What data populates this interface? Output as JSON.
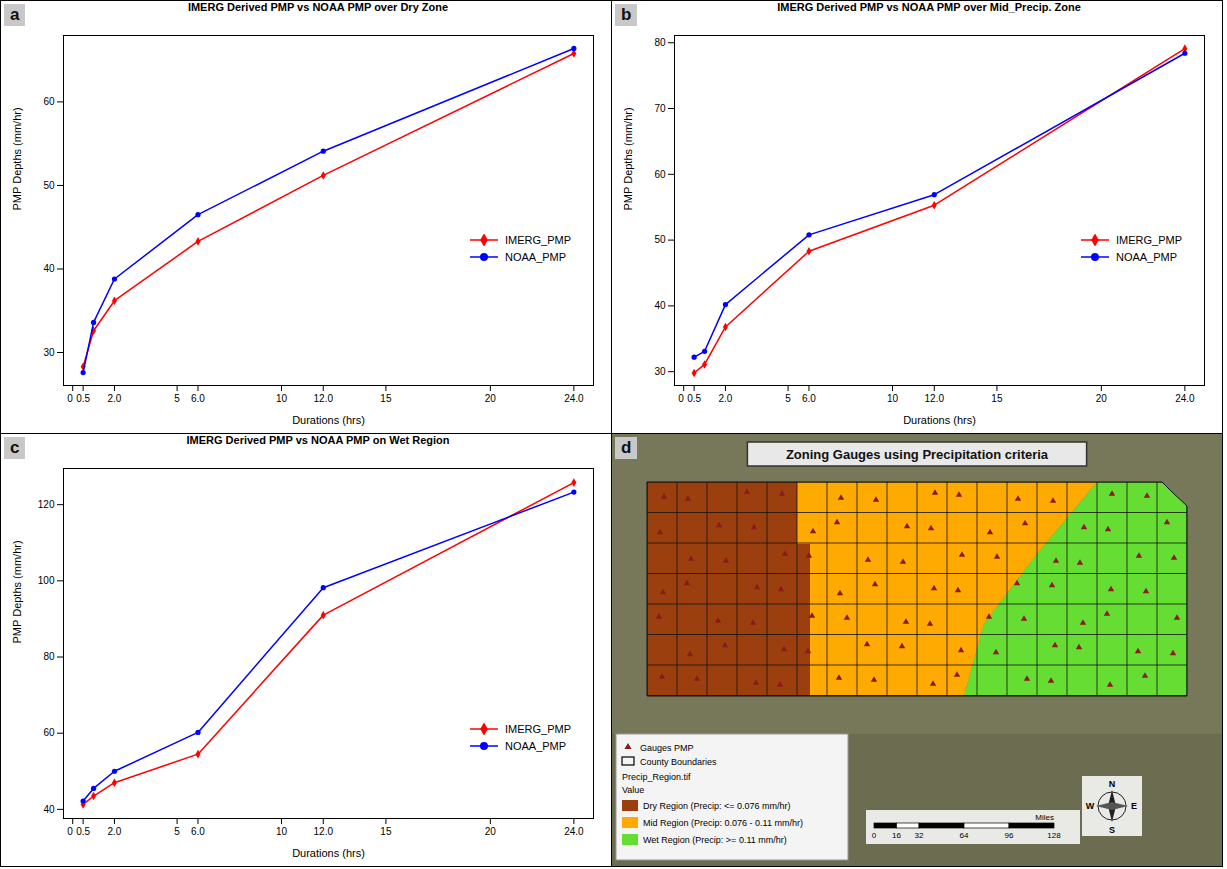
{
  "chart_data": [
    {
      "type": "line",
      "panel": "a",
      "title": "IMERG Derived PMP vs NOAA PMP over Dry Zone",
      "x_label": "Durations (hrs)",
      "y_label": "PMP Depths (mm/hr)",
      "x": [
        0.5,
        1,
        2,
        6,
        12,
        24
      ],
      "series": [
        {
          "name": "IMERG_PMP",
          "color": "#ff0000",
          "marker": "diamond",
          "values": [
            28.3,
            32.6,
            36.2,
            43.3,
            51.2,
            65.8
          ]
        },
        {
          "name": "NOAA_PMP",
          "color": "#0000ff",
          "marker": "circle",
          "values": [
            27.6,
            33.6,
            38.8,
            46.5,
            54.1,
            66.4
          ]
        }
      ],
      "xlim": [
        -0.44,
        24.94
      ],
      "xticks": [
        0,
        0.5,
        {
          "value": 2,
          "label": "2.0"
        },
        5,
        {
          "value": 6,
          "label": "6.0"
        },
        10,
        {
          "value": 12,
          "label": "12.0"
        },
        15,
        20,
        {
          "value": 24,
          "label": "24.0"
        }
      ],
      "ylim": [
        26.05,
        67.95
      ],
      "yticks": [
        30,
        40,
        50,
        60
      ],
      "grid": false,
      "legend": "right"
    },
    {
      "type": "line",
      "panel": "b",
      "title": "IMERG Derived PMP vs NOAA PMP over Mid_Precip. Zone",
      "x_label": "Durations (hrs)",
      "y_label": "PMP Depths (mm/hr)",
      "x": [
        0.5,
        1,
        2,
        6,
        12,
        24
      ],
      "series": [
        {
          "name": "IMERG_PMP",
          "color": "#ff0000",
          "marker": "diamond",
          "values": [
            29.8,
            31.1,
            36.8,
            48.3,
            55.3,
            79.1
          ]
        },
        {
          "name": "NOAA_PMP",
          "color": "#0000ff",
          "marker": "circle",
          "values": [
            32.2,
            33.1,
            40.2,
            50.8,
            56.9,
            78.4
          ]
        }
      ],
      "xlim": [
        -0.44,
        24.94
      ],
      "xticks": [
        0,
        0.5,
        {
          "value": 2,
          "label": "2.0"
        },
        5,
        {
          "value": 6,
          "label": "6.0"
        },
        10,
        {
          "value": 12,
          "label": "12.0"
        },
        15,
        20,
        {
          "value": 24,
          "label": "24.0"
        }
      ],
      "ylim": [
        27.9,
        81.1
      ],
      "yticks": [
        30,
        40,
        50,
        60,
        70,
        80
      ],
      "grid": false,
      "legend": "right"
    },
    {
      "type": "line",
      "panel": "c",
      "title": "IMERG Derived PMP vs NOAA PMP on Wet Region",
      "x_label": "Durations (hrs)",
      "y_label": "PMP Depths (mm/hr)",
      "x": [
        0.5,
        1,
        2,
        6,
        12,
        24
      ],
      "series": [
        {
          "name": "IMERG_PMP",
          "color": "#ff0000",
          "marker": "diamond",
          "values": [
            41.3,
            43.5,
            47.0,
            54.5,
            91.0,
            125.8
          ]
        },
        {
          "name": "NOAA_PMP",
          "color": "#0000ff",
          "marker": "circle",
          "values": [
            42.2,
            45.5,
            50.0,
            60.2,
            98.2,
            123.3
          ]
        }
      ],
      "xlim": [
        -0.44,
        24.94
      ],
      "xticks": [
        0,
        0.5,
        {
          "value": 2,
          "label": "2.0"
        },
        5,
        {
          "value": 6,
          "label": "6.0"
        },
        10,
        {
          "value": 12,
          "label": "12.0"
        },
        15,
        20,
        {
          "value": 24,
          "label": "24.0"
        }
      ],
      "ylim": [
        37.6,
        129.5
      ],
      "yticks": [
        40,
        60,
        80,
        100,
        120
      ],
      "grid": false,
      "legend": "lower right"
    }
  ],
  "map": {
    "panel": "d",
    "title": "Zoning Gauges using Precipitation criteria",
    "gauges_label": "Gauges PMP",
    "boundaries_label": "County Boundaries",
    "raster_name": "Precip_Region.tif",
    "value_label": "Value",
    "zones": [
      {
        "label": "Dry Region (Precip: <= 0.076 mm/hr)",
        "color": "#9c3f0f"
      },
      {
        "label": "Mid Region (Precip: 0.076 - 0.11 mm/hr)",
        "color": "#ffaa00"
      },
      {
        "label": "Wet Region (Precip: >= 0.11 mm/hr)",
        "color": "#66dd33"
      }
    ],
    "scale_bar": [
      0,
      16,
      32,
      64,
      96,
      128
    ],
    "scale_unit": "Miles",
    "compass": {
      "n": "N",
      "s": "S",
      "e": "E",
      "w": "W"
    }
  }
}
